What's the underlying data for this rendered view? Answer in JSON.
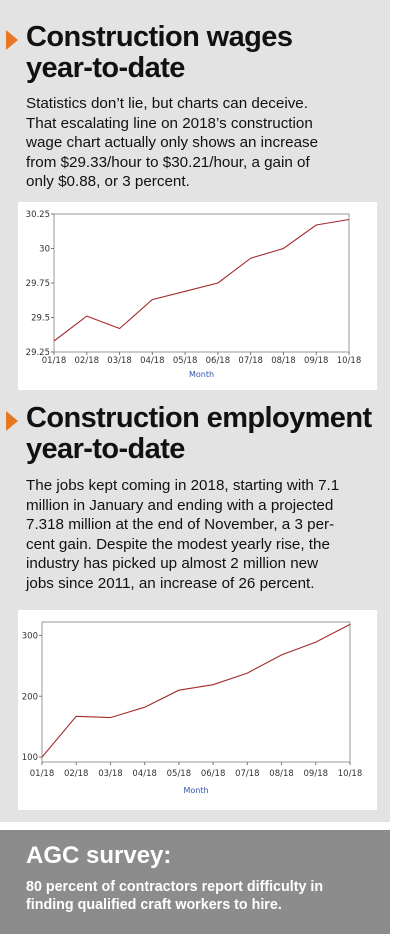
{
  "colors": {
    "accent_arrow": "#e87722",
    "line": "#a52a2a",
    "panel_bg": "#e3e3e3",
    "footer_bg": "#8c8c8c",
    "axis_title": "#3355aa"
  },
  "section1": {
    "headline": [
      "Construction wages",
      "year-to-date"
    ],
    "body": [
      "Statistics don’t lie, but charts can deceive.",
      "That escalating line on 2018’s construction",
      "wage chart actually only shows an increase",
      "from $29.33/hour to $30.21/hour, a gain of",
      "only $0.88, or 3 percent."
    ]
  },
  "section2": {
    "headline": [
      "Construction employment",
      "year-to-date"
    ],
    "body": [
      "The jobs kept coming in 2018, starting with 7.1",
      "million in January and ending with a projected",
      "7.318 million at the end of November, a 3 per-",
      "cent gain. Despite the modest yearly rise, the",
      "industry has picked up almost 2 million new",
      "jobs since 2011, an increase of 26 percent."
    ]
  },
  "agc": {
    "title": "AGC survey:",
    "text": [
      "80 percent of contractors report difficulty in",
      "finding qualified craft workers to hire."
    ]
  },
  "chart_data": [
    {
      "type": "line",
      "x": [
        "01/18",
        "02/18",
        "03/18",
        "04/18",
        "05/18",
        "06/18",
        "07/18",
        "08/18",
        "09/18",
        "10/18"
      ],
      "series": [
        {
          "values": [
            29.33,
            29.51,
            29.42,
            29.63,
            29.69,
            29.75,
            29.93,
            30.0,
            30.17,
            30.21
          ]
        }
      ],
      "xlabel": "Month",
      "ylim": [
        29.25,
        30.25
      ],
      "yticks": [
        "29.25",
        "29.5",
        "29.75",
        "30",
        "30.25"
      ],
      "ytick_values": [
        29.25,
        29.5,
        29.75,
        30,
        30.25
      ],
      "grid": false
    },
    {
      "type": "line",
      "x": [
        "01/18",
        "02/18",
        "03/18",
        "04/18",
        "05/18",
        "06/18",
        "07/18",
        "08/18",
        "09/18",
        "10/18"
      ],
      "series": [
        {
          "values": [
            100,
            167,
            165,
            182,
            210,
            219,
            238,
            268,
            289,
            318
          ]
        }
      ],
      "xlabel": "Month",
      "ylim": [
        92,
        322
      ],
      "yticks": [
        "100",
        "200",
        "300"
      ],
      "ytick_values": [
        100,
        200,
        300
      ],
      "grid": false
    }
  ]
}
